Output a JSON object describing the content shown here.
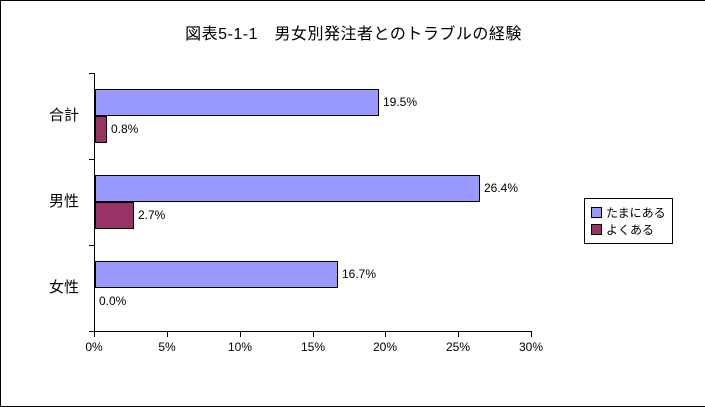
{
  "chart_data": {
    "type": "bar",
    "orientation": "horizontal",
    "title": "図表5-1-1　男女別発注者とのトラブルの経験",
    "categories": [
      "合計",
      "男性",
      "女性"
    ],
    "series": [
      {
        "name": "たまにある",
        "color": "#9999ff",
        "values": [
          19.5,
          26.4,
          16.7
        ]
      },
      {
        "name": "よくある",
        "color": "#993366",
        "values": [
          0.8,
          2.7,
          0.0
        ]
      }
    ],
    "value_labels": [
      [
        "19.5%",
        "0.8%"
      ],
      [
        "26.4%",
        "2.7%"
      ],
      [
        "16.7%",
        "0.0%"
      ]
    ],
    "x_ticks": [
      "0%",
      "5%",
      "10%",
      "15%",
      "20%",
      "25%",
      "30%"
    ],
    "xlim": [
      0,
      30
    ],
    "grid": false,
    "legend_position": "right",
    "plot_background": "#ffffff",
    "bar_border_color": "#000000"
  }
}
